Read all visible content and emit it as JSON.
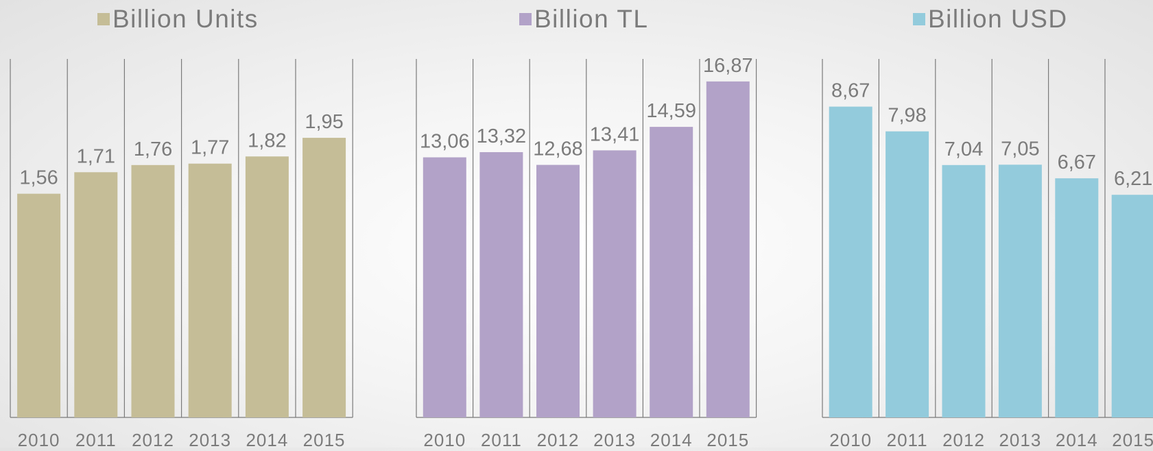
{
  "chart_data": [
    {
      "type": "bar",
      "legend": "Billion Units",
      "color": "#c5bd97",
      "categories": [
        "2010",
        "2011",
        "2012",
        "2013",
        "2014",
        "2015"
      ],
      "values": [
        1.56,
        1.71,
        1.76,
        1.77,
        1.82,
        1.95
      ],
      "labels": [
        "1,56",
        "1,71",
        "1,76",
        "1,77",
        "1,82",
        "1,95"
      ],
      "ylim": [
        0,
        2.5
      ],
      "grid": "vertical separators",
      "legend_position": "top"
    },
    {
      "type": "bar",
      "legend": "Billion TL",
      "color": "#b2a2c8",
      "categories": [
        "2010",
        "2011",
        "2012",
        "2013",
        "2014",
        "2015"
      ],
      "values": [
        13.06,
        13.32,
        12.68,
        13.41,
        14.59,
        16.87
      ],
      "labels": [
        "13,06",
        "13,32",
        "12,68",
        "13,41",
        "14,59",
        "16,87"
      ],
      "ylim": [
        0,
        18
      ],
      "grid": "vertical separators",
      "legend_position": "top"
    },
    {
      "type": "bar",
      "legend": "Billion USD",
      "color": "#93cbdc",
      "categories": [
        "2010",
        "2011",
        "2012",
        "2013",
        "2014",
        "2015"
      ],
      "values": [
        8.67,
        7.98,
        7.04,
        7.05,
        6.67,
        6.21
      ],
      "labels": [
        "8,67",
        "7,98",
        "7,04",
        "7,05",
        "6,67",
        "6,21"
      ],
      "ylim": [
        0,
        10
      ],
      "grid": "vertical separators",
      "legend_position": "top"
    }
  ]
}
